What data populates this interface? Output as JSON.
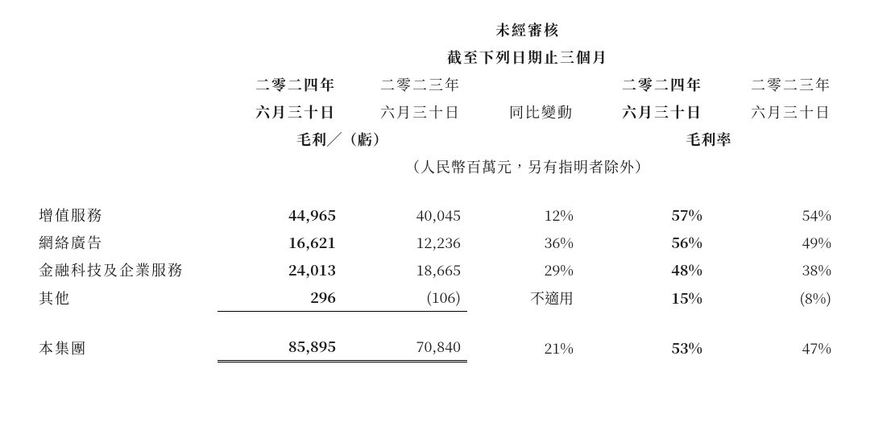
{
  "header": {
    "title": "未經審核",
    "subtitle": "截至下列日期止三個月",
    "period_labels": {
      "y2024": "二零二四年",
      "y2023": "二零二三年",
      "date": "六月三十日",
      "change": "同比變動"
    },
    "section_labels": {
      "gross_profit": "毛利╱（虧）",
      "gross_margin": "毛利率"
    },
    "unit_note": "（人民幣百萬元，另有指明者除外）"
  },
  "rows": [
    {
      "label": "增值服務",
      "gp_2024": "44,965",
      "gp_2023": "40,045",
      "change": "12%",
      "margin_2024": "57%",
      "margin_2023": "54%"
    },
    {
      "label": "網絡廣告",
      "gp_2024": "16,621",
      "gp_2023": "12,236",
      "change": "36%",
      "margin_2024": "56%",
      "margin_2023": "49%"
    },
    {
      "label": "金融科技及企業服務",
      "gp_2024": "24,013",
      "gp_2023": "18,665",
      "change": "29%",
      "margin_2024": "48%",
      "margin_2023": "38%"
    },
    {
      "label": "其他",
      "gp_2024": "296",
      "gp_2023": "(106)",
      "change": "不適用",
      "margin_2024": "15%",
      "margin_2023": "(8%)"
    }
  ],
  "total": {
    "label": "本集團",
    "gp_2024": "85,895",
    "gp_2023": "70,840",
    "change": "21%",
    "margin_2024": "53%",
    "margin_2023": "47%"
  }
}
